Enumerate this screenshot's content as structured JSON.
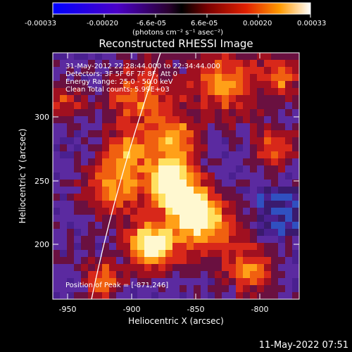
{
  "colorbar": {
    "tick_labels": [
      "-0.00033",
      "-0.00020",
      "-6.6e-05",
      "6.6e-05",
      "0.00020",
      "0.00033"
    ],
    "unit_label": "(photons cm⁻² s⁻¹ asec⁻²)"
  },
  "plot": {
    "title": "Reconstructed RHESSI Image",
    "annotations": [
      "31-May-2012 22:28:44.000 to 22:34:44.000",
      "Detectors: 3F 5F 6F 7F 8F, Att 0",
      "Energy Range: 25.0 - 50.0 keV",
      "Clean     Total counts: 5.99E+03"
    ],
    "peak_label": "Position of Peak = [-871,246]",
    "xlabel": "Heliocentric X (arcsec)",
    "ylabel": "Heliocentric Y (arcsec)",
    "x_ticks": [
      "-950",
      "-900",
      "-850",
      "-800"
    ],
    "y_ticks": [
      "300",
      "250",
      "200"
    ]
  },
  "footer": {
    "timestamp": "11-May-2022 07:51"
  }
}
